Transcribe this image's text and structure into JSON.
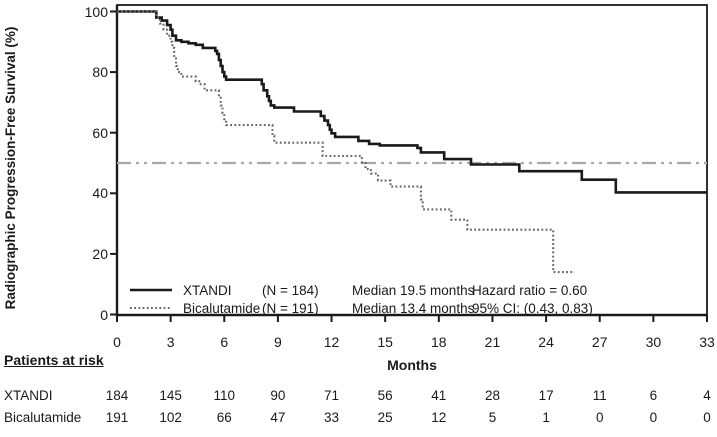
{
  "chart_data": {
    "type": "line",
    "subtype": "kaplan-meier-step",
    "title": "",
    "xlabel": "Months",
    "ylabel": "Radiographic Progression-Free Survival (%)",
    "xlim": [
      0,
      33
    ],
    "ylim": [
      0,
      100
    ],
    "x_ticks": [
      0,
      3,
      6,
      9,
      12,
      15,
      18,
      21,
      24,
      27,
      30,
      33
    ],
    "y_ticks": [
      0,
      20,
      40,
      60,
      80,
      100
    ],
    "grid": false,
    "legend_position": "bottom-inside",
    "reference_line": {
      "y": 50,
      "style": "dash-dot",
      "color": "#a8a8a8"
    },
    "series": [
      {
        "name": "XTANDI",
        "n_label": "(N = 184)",
        "median_label": "Median 19.5 months",
        "stat_label": "Hazard ratio = 0.60",
        "style": "solid",
        "color": "#1a1a1a",
        "points": [
          [
            0,
            100
          ],
          [
            2.1,
            100
          ],
          [
            2.2,
            98
          ],
          [
            2.5,
            97
          ],
          [
            2.8,
            95.5
          ],
          [
            3.0,
            94
          ],
          [
            3.1,
            92
          ],
          [
            3.3,
            90.5
          ],
          [
            3.6,
            90
          ],
          [
            4.0,
            89.5
          ],
          [
            4.4,
            89
          ],
          [
            4.8,
            88
          ],
          [
            5.5,
            87
          ],
          [
            5.6,
            86
          ],
          [
            5.7,
            84
          ],
          [
            5.8,
            82
          ],
          [
            5.9,
            80
          ],
          [
            6.0,
            78.5
          ],
          [
            6.1,
            77.5
          ],
          [
            8.1,
            76
          ],
          [
            8.2,
            74
          ],
          [
            8.4,
            72
          ],
          [
            8.5,
            70.5
          ],
          [
            8.6,
            69
          ],
          [
            8.8,
            68.3
          ],
          [
            9.9,
            67
          ],
          [
            11.4,
            65.5
          ],
          [
            11.6,
            64
          ],
          [
            11.8,
            62.5
          ],
          [
            11.9,
            61
          ],
          [
            12.0,
            59.8
          ],
          [
            12.2,
            58.6
          ],
          [
            13.5,
            57.3
          ],
          [
            14.1,
            56.3
          ],
          [
            14.7,
            55.8
          ],
          [
            16.8,
            55
          ],
          [
            17.0,
            53.5
          ],
          [
            18.3,
            51.3
          ],
          [
            19.8,
            49.5
          ],
          [
            22.5,
            47.3
          ],
          [
            26.0,
            44.5
          ],
          [
            27.9,
            40.3
          ],
          [
            33,
            40.3
          ]
        ]
      },
      {
        "name": "Bicalutamide",
        "n_label": "(N = 191)",
        "median_label": "Median 13.4 months",
        "stat_label": "95% CI: (0.43, 0.83)",
        "style": "dotted",
        "color": "#666666",
        "points": [
          [
            0,
            100
          ],
          [
            2.1,
            100
          ],
          [
            2.2,
            98
          ],
          [
            2.4,
            96
          ],
          [
            2.6,
            94
          ],
          [
            2.8,
            92
          ],
          [
            3.0,
            90
          ],
          [
            3.1,
            88
          ],
          [
            3.2,
            85
          ],
          [
            3.3,
            82
          ],
          [
            3.4,
            80
          ],
          [
            3.6,
            78.5
          ],
          [
            4.4,
            77
          ],
          [
            4.6,
            76
          ],
          [
            4.9,
            74
          ],
          [
            5.7,
            72
          ],
          [
            5.8,
            69
          ],
          [
            5.9,
            66.5
          ],
          [
            6.0,
            64
          ],
          [
            6.1,
            62.5
          ],
          [
            8.7,
            59
          ],
          [
            8.8,
            56.7
          ],
          [
            11.5,
            52.3
          ],
          [
            13.7,
            50
          ],
          [
            13.9,
            48
          ],
          [
            14.2,
            46.5
          ],
          [
            14.6,
            44.2
          ],
          [
            15.3,
            42.2
          ],
          [
            17.0,
            38
          ],
          [
            17.1,
            34.7
          ],
          [
            18.7,
            31.3
          ],
          [
            19.6,
            28
          ],
          [
            24.4,
            14
          ],
          [
            25.6,
            14
          ]
        ]
      }
    ]
  },
  "risk_table": {
    "heading": "Patients at risk",
    "rows": [
      {
        "label": "XTANDI",
        "values": [
          "184",
          "145",
          "110",
          "90",
          "71",
          "56",
          "41",
          "28",
          "17",
          "11",
          "6",
          "4"
        ]
      },
      {
        "label": "Bicalutamide",
        "values": [
          "191",
          "102",
          "66",
          "47",
          "33",
          "25",
          "12",
          "5",
          "1",
          "0",
          "0",
          "0"
        ]
      }
    ]
  },
  "colors": {
    "axis": "#1a1a1a",
    "reference_line": "#a8a8a8",
    "background": "#ffffff"
  }
}
